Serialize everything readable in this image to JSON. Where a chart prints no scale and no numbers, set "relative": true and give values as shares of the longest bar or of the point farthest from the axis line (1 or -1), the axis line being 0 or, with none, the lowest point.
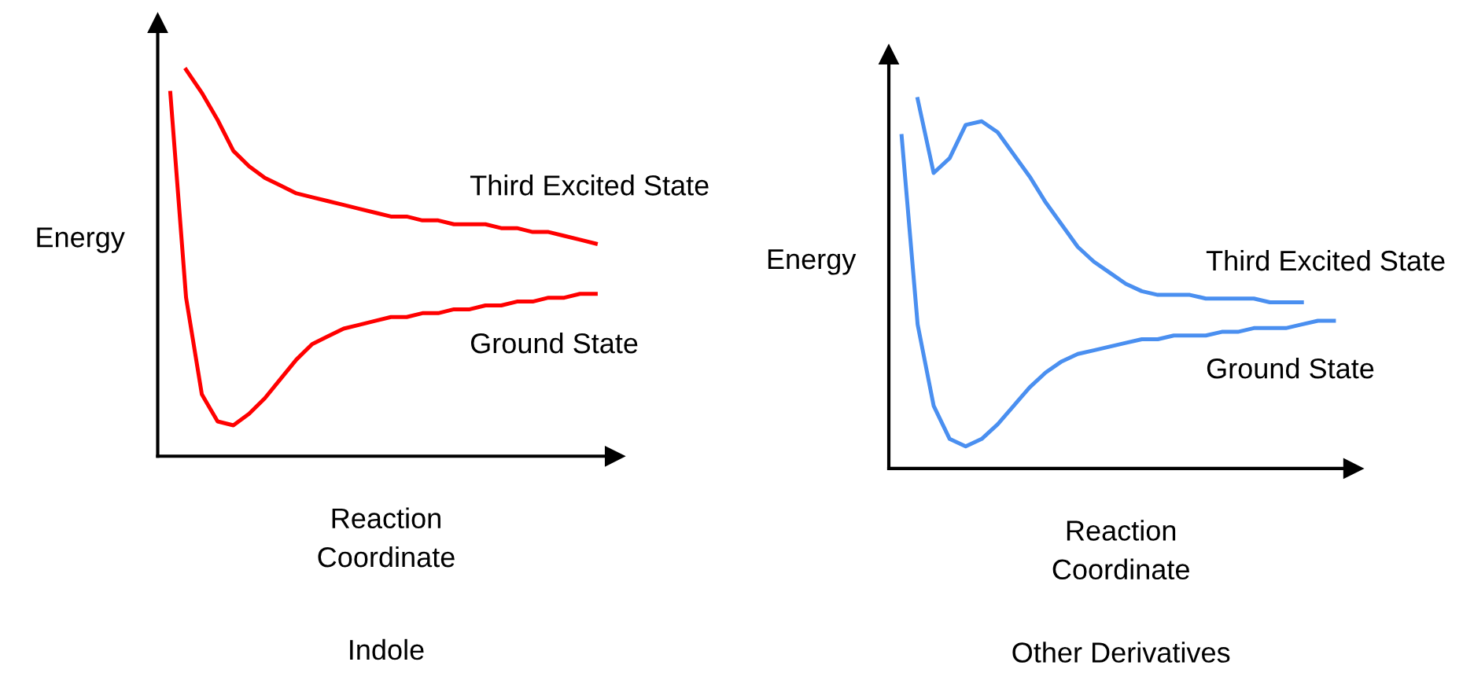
{
  "chart_data": [
    {
      "type": "line",
      "title": "Indole",
      "xlabel": "Reaction\nCoordinate",
      "ylabel": "Energy",
      "relative": true,
      "grid": false,
      "legend": false,
      "marker": "none",
      "line_style": "solid",
      "categories": [
        null,
        null,
        null,
        null,
        null,
        null,
        null,
        null,
        null,
        null,
        null,
        null,
        null,
        null,
        null,
        null,
        null,
        null,
        null,
        null,
        null,
        null,
        null,
        null,
        null,
        null,
        null,
        null
      ],
      "series": [
        {
          "name": "Third Excited State",
          "color": "#ff0000",
          "values": [
            null,
            1.0,
            0.94,
            0.87,
            0.79,
            0.75,
            0.72,
            0.7,
            0.68,
            0.67,
            0.66,
            0.65,
            0.64,
            0.63,
            0.62,
            0.62,
            0.61,
            0.61,
            0.6,
            0.6,
            0.6,
            0.59,
            0.59,
            0.58,
            0.58,
            0.57,
            0.56,
            0.55
          ]
        },
        {
          "name": "Ground State",
          "color": "#ff0000",
          "values": [
            0.94,
            0.41,
            0.16,
            0.09,
            0.08,
            0.11,
            0.15,
            0.2,
            0.25,
            0.29,
            0.31,
            0.33,
            0.34,
            0.35,
            0.36,
            0.36,
            0.37,
            0.37,
            0.38,
            0.38,
            0.39,
            0.39,
            0.4,
            0.4,
            0.41,
            0.41,
            0.42,
            0.42
          ]
        }
      ]
    },
    {
      "type": "line",
      "title": "Other Derivatives",
      "xlabel": "Reaction\nCoordinate",
      "ylabel": "Energy",
      "relative": true,
      "grid": false,
      "legend": false,
      "marker": "none",
      "line_style": "solid",
      "categories": [
        null,
        null,
        null,
        null,
        null,
        null,
        null,
        null,
        null,
        null,
        null,
        null,
        null,
        null,
        null,
        null,
        null,
        null,
        null,
        null,
        null,
        null,
        null,
        null,
        null,
        null,
        null,
        null
      ],
      "series": [
        {
          "name": "Third Excited State",
          "color": "#4a8ff0",
          "values": [
            null,
            1.0,
            0.8,
            0.84,
            0.93,
            0.94,
            0.91,
            0.85,
            0.79,
            0.72,
            0.66,
            0.6,
            0.56,
            0.53,
            0.5,
            0.48,
            0.47,
            0.47,
            0.47,
            0.46,
            0.46,
            0.46,
            0.46,
            0.45,
            0.45,
            0.45,
            null,
            null
          ]
        },
        {
          "name": "Ground State",
          "color": "#4a8ff0",
          "values": [
            0.9,
            0.39,
            0.17,
            0.08,
            0.06,
            0.08,
            0.12,
            0.17,
            0.22,
            0.26,
            0.29,
            0.31,
            0.32,
            0.33,
            0.34,
            0.35,
            0.35,
            0.36,
            0.36,
            0.36,
            0.37,
            0.37,
            0.38,
            0.38,
            0.38,
            0.39,
            0.4,
            0.4
          ]
        }
      ]
    }
  ]
}
